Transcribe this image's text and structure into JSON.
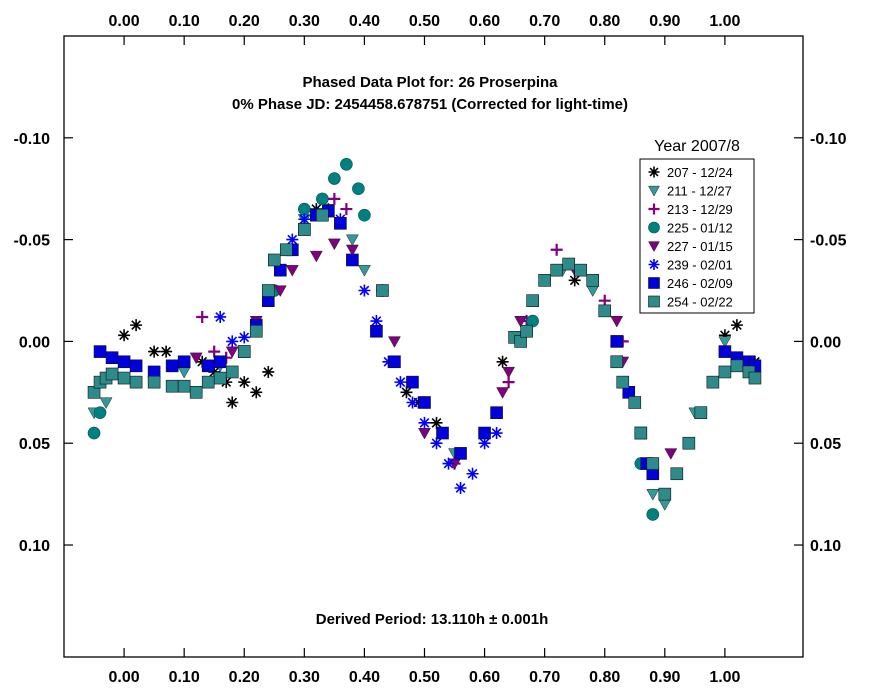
{
  "chart_data": {
    "type": "scatter",
    "title": "Phased Data Plot for: 26 Proserpina",
    "subtitle": "0% Phase JD:  2454458.678751   (Corrected for light-time)",
    "footer": "Derived Period: 13.110h ± 0.001h",
    "xlim": [
      -0.1,
      1.13
    ],
    "ylim": [
      -0.15,
      0.155
    ],
    "y_inverted": true,
    "grid": false,
    "x_ticks": [
      "0.00",
      "0.10",
      "0.20",
      "0.30",
      "0.40",
      "0.50",
      "0.60",
      "0.70",
      "0.80",
      "0.90",
      "1.00"
    ],
    "x_tick_values": [
      0,
      0.1,
      0.2,
      0.3,
      0.4,
      0.5,
      0.6,
      0.7,
      0.8,
      0.9,
      1.0
    ],
    "y_ticks": [
      "-0.10",
      "-0.05",
      "0.00",
      "0.05",
      "0.10"
    ],
    "y_tick_values": [
      -0.1,
      -0.05,
      0,
      0.05,
      0.1
    ],
    "legend_title": "Year 2007/8",
    "legend_position": "top-right",
    "series": [
      {
        "name": "207 - 12/24",
        "marker": "asterisk",
        "color": "#000000",
        "points": [
          [
            0.0,
            -0.003
          ],
          [
            0.02,
            -0.008
          ],
          [
            0.05,
            0.005
          ],
          [
            0.07,
            0.005
          ],
          [
            0.1,
            0.01
          ],
          [
            0.13,
            0.01
          ],
          [
            0.15,
            0.015
          ],
          [
            0.17,
            0.02
          ],
          [
            0.18,
            0.03
          ],
          [
            0.2,
            0.02
          ],
          [
            0.22,
            0.025
          ],
          [
            0.24,
            0.015
          ],
          [
            0.28,
            -0.045
          ],
          [
            0.3,
            -0.055
          ],
          [
            0.32,
            -0.065
          ],
          [
            0.47,
            0.025
          ],
          [
            0.49,
            0.03
          ],
          [
            0.52,
            0.04
          ],
          [
            0.6,
            0.045
          ],
          [
            0.63,
            0.01
          ],
          [
            0.75,
            -0.03
          ],
          [
            1.0,
            -0.003
          ],
          [
            1.02,
            -0.008
          ],
          [
            1.05,
            0.01
          ]
        ]
      },
      {
        "name": "211 - 12/27",
        "marker": "triangle-down",
        "color": "#339999",
        "points": [
          [
            -0.05,
            0.035
          ],
          [
            -0.03,
            0.03
          ],
          [
            0.05,
            0.02
          ],
          [
            0.1,
            0.015
          ],
          [
            0.16,
            0.012
          ],
          [
            0.3,
            -0.06
          ],
          [
            0.34,
            -0.065
          ],
          [
            0.38,
            -0.05
          ],
          [
            0.4,
            -0.035
          ],
          [
            0.55,
            0.055
          ],
          [
            0.7,
            -0.03
          ],
          [
            0.73,
            -0.035
          ],
          [
            0.78,
            -0.025
          ],
          [
            0.83,
            0.02
          ],
          [
            0.88,
            0.075
          ],
          [
            0.9,
            0.08
          ],
          [
            0.95,
            0.035
          ],
          [
            1.0,
            0.0
          ]
        ]
      },
      {
        "name": "213 - 12/29",
        "marker": "plus",
        "color": "#800080",
        "points": [
          [
            0.13,
            -0.012
          ],
          [
            0.15,
            0.005
          ],
          [
            0.17,
            0.008
          ],
          [
            0.3,
            -0.065
          ],
          [
            0.35,
            -0.07
          ],
          [
            0.37,
            -0.065
          ],
          [
            0.55,
            0.06
          ],
          [
            0.64,
            0.02
          ],
          [
            0.67,
            -0.01
          ],
          [
            0.72,
            -0.045
          ],
          [
            0.76,
            -0.035
          ],
          [
            0.8,
            -0.02
          ],
          [
            0.83,
            0.0
          ]
        ]
      },
      {
        "name": "225 - 01/12",
        "marker": "circle",
        "color": "#008080",
        "points": [
          [
            -0.05,
            0.045
          ],
          [
            -0.04,
            0.035
          ],
          [
            0.25,
            -0.025
          ],
          [
            0.3,
            -0.065
          ],
          [
            0.33,
            -0.07
          ],
          [
            0.35,
            -0.08
          ],
          [
            0.37,
            -0.087
          ],
          [
            0.39,
            -0.075
          ],
          [
            0.4,
            -0.062
          ],
          [
            0.43,
            -0.025
          ],
          [
            0.66,
            -0.002
          ],
          [
            0.68,
            -0.01
          ],
          [
            0.86,
            0.06
          ],
          [
            0.88,
            0.085
          ]
        ]
      },
      {
        "name": "227 - 01/15",
        "marker": "triangle-down",
        "color": "#800080",
        "points": [
          [
            0.12,
            0.008
          ],
          [
            0.18,
            0.005
          ],
          [
            0.22,
            -0.01
          ],
          [
            0.26,
            -0.025
          ],
          [
            0.28,
            -0.035
          ],
          [
            0.32,
            -0.042
          ],
          [
            0.35,
            -0.048
          ],
          [
            0.38,
            -0.045
          ],
          [
            0.45,
            0.0
          ],
          [
            0.5,
            0.045
          ],
          [
            0.55,
            0.06
          ],
          [
            0.63,
            0.025
          ],
          [
            0.64,
            0.015
          ],
          [
            0.66,
            -0.01
          ],
          [
            0.7,
            -0.03
          ],
          [
            0.75,
            -0.035
          ],
          [
            0.78,
            -0.03
          ],
          [
            0.82,
            -0.01
          ],
          [
            0.83,
            0.01
          ],
          [
            0.91,
            0.055
          ]
        ]
      },
      {
        "name": "239 - 02/01",
        "marker": "asterisk",
        "color": "#0000ff",
        "points": [
          [
            0.16,
            -0.012
          ],
          [
            0.18,
            0.0
          ],
          [
            0.2,
            -0.002
          ],
          [
            0.24,
            -0.02
          ],
          [
            0.26,
            -0.035
          ],
          [
            0.28,
            -0.05
          ],
          [
            0.3,
            -0.06
          ],
          [
            0.32,
            -0.063
          ],
          [
            0.34,
            -0.065
          ],
          [
            0.36,
            -0.06
          ],
          [
            0.38,
            -0.04
          ],
          [
            0.4,
            -0.025
          ],
          [
            0.42,
            -0.01
          ],
          [
            0.44,
            0.01
          ],
          [
            0.46,
            0.02
          ],
          [
            0.48,
            0.03
          ],
          [
            0.5,
            0.04
          ],
          [
            0.52,
            0.05
          ],
          [
            0.54,
            0.06
          ],
          [
            0.56,
            0.072
          ],
          [
            0.58,
            0.065
          ],
          [
            0.6,
            0.05
          ],
          [
            0.62,
            0.045
          ]
        ]
      },
      {
        "name": "246 - 02/09",
        "marker": "square",
        "color": "#0000dd",
        "points": [
          [
            -0.04,
            0.005
          ],
          [
            -0.02,
            0.008
          ],
          [
            0.0,
            0.01
          ],
          [
            0.02,
            0.012
          ],
          [
            0.05,
            0.015
          ],
          [
            0.08,
            0.012
          ],
          [
            0.1,
            0.01
          ],
          [
            0.14,
            0.012
          ],
          [
            0.16,
            0.01
          ],
          [
            0.2,
            0.005
          ],
          [
            0.22,
            -0.008
          ],
          [
            0.24,
            -0.02
          ],
          [
            0.26,
            -0.035
          ],
          [
            0.28,
            -0.045
          ],
          [
            0.3,
            -0.055
          ],
          [
            0.32,
            -0.062
          ],
          [
            0.34,
            -0.064
          ],
          [
            0.36,
            -0.058
          ],
          [
            0.38,
            -0.04
          ],
          [
            0.42,
            -0.005
          ],
          [
            0.45,
            0.01
          ],
          [
            0.48,
            0.02
          ],
          [
            0.5,
            0.03
          ],
          [
            0.53,
            0.045
          ],
          [
            0.56,
            0.055
          ],
          [
            0.6,
            0.045
          ],
          [
            0.62,
            0.035
          ],
          [
            0.82,
            0.0
          ],
          [
            0.84,
            0.025
          ],
          [
            0.86,
            0.045
          ],
          [
            0.87,
            0.06
          ],
          [
            0.88,
            0.065
          ],
          [
            1.0,
            0.005
          ],
          [
            1.02,
            0.008
          ],
          [
            1.04,
            0.01
          ],
          [
            1.05,
            0.012
          ]
        ]
      },
      {
        "name": "254 - 02/22",
        "marker": "square",
        "color": "#2e8b8b",
        "points": [
          [
            -0.05,
            0.025
          ],
          [
            -0.04,
            0.02
          ],
          [
            -0.03,
            0.018
          ],
          [
            -0.02,
            0.016
          ],
          [
            0.0,
            0.018
          ],
          [
            0.02,
            0.02
          ],
          [
            0.05,
            0.02
          ],
          [
            0.08,
            0.022
          ],
          [
            0.1,
            0.022
          ],
          [
            0.12,
            0.025
          ],
          [
            0.14,
            0.02
          ],
          [
            0.16,
            0.018
          ],
          [
            0.18,
            0.015
          ],
          [
            0.2,
            0.005
          ],
          [
            0.22,
            -0.005
          ],
          [
            0.24,
            -0.025
          ],
          [
            0.25,
            -0.04
          ],
          [
            0.27,
            -0.045
          ],
          [
            0.3,
            -0.055
          ],
          [
            0.33,
            -0.062
          ],
          [
            0.43,
            -0.025
          ],
          [
            0.65,
            -0.002
          ],
          [
            0.66,
            0.0
          ],
          [
            0.67,
            -0.005
          ],
          [
            0.68,
            -0.02
          ],
          [
            0.7,
            -0.03
          ],
          [
            0.72,
            -0.035
          ],
          [
            0.74,
            -0.038
          ],
          [
            0.76,
            -0.035
          ],
          [
            0.78,
            -0.03
          ],
          [
            0.8,
            -0.015
          ],
          [
            0.82,
            0.01
          ],
          [
            0.83,
            0.02
          ],
          [
            0.85,
            0.03
          ],
          [
            0.86,
            0.045
          ],
          [
            0.88,
            0.06
          ],
          [
            0.9,
            0.075
          ],
          [
            0.92,
            0.065
          ],
          [
            0.94,
            0.05
          ],
          [
            0.96,
            0.035
          ],
          [
            0.98,
            0.02
          ],
          [
            1.0,
            0.015
          ],
          [
            1.02,
            0.012
          ],
          [
            1.04,
            0.015
          ],
          [
            1.05,
            0.018
          ]
        ]
      }
    ]
  }
}
